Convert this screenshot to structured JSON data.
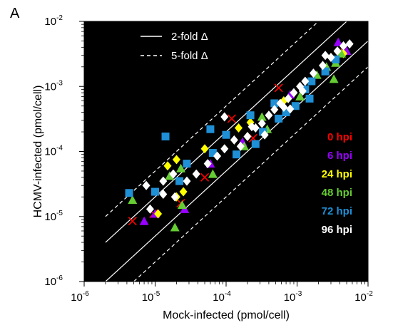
{
  "panel_label": "A",
  "chart_data": {
    "type": "scatter",
    "background": "#000000",
    "x_scale": "log",
    "y_scale": "log",
    "xlim": [
      1e-06,
      0.01
    ],
    "ylim": [
      1e-06,
      0.01
    ],
    "xlabel": "Mock-infected (pmol/cell)",
    "ylabel": "HCMV-infected (pmol/cell)",
    "x_ticks": [
      {
        "base": "10",
        "exp": "-6"
      },
      {
        "base": "10",
        "exp": "-5"
      },
      {
        "base": "10",
        "exp": "-4"
      },
      {
        "base": "10",
        "exp": "-3"
      },
      {
        "base": "10",
        "exp": "-2"
      }
    ],
    "y_ticks": [
      {
        "base": "10",
        "exp": "-6"
      },
      {
        "base": "10",
        "exp": "-5"
      },
      {
        "base": "10",
        "exp": "-4"
      },
      {
        "base": "10",
        "exp": "-3"
      },
      {
        "base": "10",
        "exp": "-2"
      }
    ],
    "reference_lines": [
      {
        "label": "2-fold Δ",
        "style": "solid",
        "factors": [
          2,
          0.5
        ]
      },
      {
        "label": "5-fold Δ",
        "style": "dashed",
        "factors": [
          5,
          0.2
        ]
      }
    ],
    "series": [
      {
        "name": "0 hpi",
        "color": "#ff0000",
        "marker": "cross",
        "points": [
          [
            4.8e-06,
            8.5e-06
          ],
          [
            9.5e-06,
            1.1e-05
          ],
          [
            2.3e-05,
            1.6e-05
          ],
          [
            5e-05,
            4e-05
          ],
          [
            0.00012,
            0.00032
          ],
          [
            0.00024,
            0.00016
          ],
          [
            0.0045,
            0.004
          ],
          [
            0.00055,
            0.00095
          ]
        ]
      },
      {
        "name": "6 hpi",
        "color": "#9900ff",
        "marker": "triangle",
        "points": [
          [
            7e-06,
            8.5e-06
          ],
          [
            1e-05,
            1.1e-05
          ],
          [
            2.6e-05,
            1.3e-05
          ],
          [
            6e-05,
            6.5e-05
          ],
          [
            0.00017,
            0.00014
          ],
          [
            0.005,
            0.0035
          ],
          [
            0.0038,
            0.0048
          ],
          [
            0.0008,
            0.00075
          ]
        ]
      },
      {
        "name": "24 hpi",
        "color": "#ffff00",
        "marker": "diamond",
        "points": [
          [
            1.1e-05,
            1.1e-05
          ],
          [
            2e-05,
            2e-05
          ],
          [
            2.5e-05,
            2.4e-05
          ],
          [
            1.5e-05,
            6e-05
          ],
          [
            2e-05,
            7.5e-05
          ],
          [
            5e-05,
            0.00011
          ],
          [
            0.00015,
            0.00023
          ],
          [
            0.00022,
            0.00028
          ],
          [
            0.0045,
            0.0032
          ],
          [
            0.00065,
            0.0006
          ]
        ]
      },
      {
        "name": "48 hpi",
        "color": "#66cc33",
        "marker": "triangle",
        "points": [
          [
            4.8e-06,
            1.8e-05
          ],
          [
            1.9e-05,
            6.8e-06
          ],
          [
            2.4e-05,
            1.5e-05
          ],
          [
            1.6e-05,
            4.2e-05
          ],
          [
            2.3e-05,
            5.5e-05
          ],
          [
            6.5e-05,
            4.5e-05
          ],
          [
            0.00018,
            0.00012
          ],
          [
            0.00038,
            0.00022
          ],
          [
            0.0011,
            0.0007
          ],
          [
            0.0026,
            0.002
          ],
          [
            0.0033,
            0.0013
          ],
          [
            0.0019,
            0.0015
          ],
          [
            0.0035,
            0.0023
          ],
          [
            0.0042,
            0.0032
          ],
          [
            0.00032,
            0.00034
          ]
        ]
      },
      {
        "name": "72 hpi",
        "color": "#1f8fd6",
        "marker": "square",
        "points": [
          [
            4.3e-06,
            2.3e-05
          ],
          [
            1.4e-05,
            0.00017
          ],
          [
            1e-05,
            2.4e-05
          ],
          [
            2.2e-05,
            3.5e-05
          ],
          [
            2.8e-05,
            6.5e-05
          ],
          [
            6.5e-05,
            9.5e-05
          ],
          [
            0.0001,
            0.00018
          ],
          [
            0.00014,
            9e-05
          ],
          [
            0.00026,
            0.00013
          ],
          [
            0.00033,
            0.0002
          ],
          [
            0.00055,
            0.00032
          ],
          [
            0.0007,
            0.0004
          ],
          [
            0.00095,
            0.0005
          ],
          [
            0.00048,
            0.00055
          ],
          [
            0.0013,
            0.0009
          ],
          [
            0.0016,
            0.0012
          ],
          [
            0.0025,
            0.0017
          ],
          [
            0.0035,
            0.0026
          ],
          [
            6e-05,
            0.00022
          ],
          [
            0.00022,
            0.00036
          ],
          [
            0.0015,
            0.00065
          ]
        ]
      },
      {
        "name": "96 hpi",
        "color": "#ffffff",
        "marker": "diamond",
        "points": [
          [
            1.3e-05,
            2.2e-05
          ],
          [
            8.5e-06,
            1.3e-05
          ],
          [
            1.3e-05,
            3.5e-05
          ],
          [
            1.9e-05,
            2e-05
          ],
          [
            2.8e-05,
            3.5e-05
          ],
          [
            3.8e-05,
            4.5e-05
          ],
          [
            5.5e-05,
            6.5e-05
          ],
          [
            7.5e-05,
            8.5e-05
          ],
          [
            9.5e-05,
            0.00011
          ],
          [
            0.00013,
            0.00015
          ],
          [
            0.00016,
            0.00012
          ],
          [
            0.0002,
            0.00017
          ],
          [
            0.00026,
            0.00023
          ],
          [
            0.00032,
            0.00027
          ],
          [
            0.0004,
            0.00036
          ],
          [
            0.00048,
            0.00044
          ],
          [
            0.00058,
            0.00055
          ],
          [
            0.00065,
            0.00048
          ],
          [
            0.00075,
            0.00065
          ],
          [
            0.0009,
            0.0008
          ],
          [
            0.0011,
            0.001
          ],
          [
            0.0013,
            0.0012
          ],
          [
            0.0017,
            0.0016
          ],
          [
            0.0023,
            0.0021
          ],
          [
            0.003,
            0.0028
          ],
          [
            0.0037,
            0.0035
          ],
          [
            0.0045,
            0.0042
          ],
          [
            0.0055,
            0.0045
          ],
          [
            7.5e-06,
            3e-05
          ],
          [
            9.5e-05,
            0.00034
          ],
          [
            1.8e-05,
            4.5e-05
          ],
          [
            0.00023,
            0.00024
          ],
          [
            0.00035,
            0.00018
          ],
          [
            0.0008,
            0.00045
          ],
          [
            0.0012,
            0.00085
          ],
          [
            0.0025,
            0.003
          ]
        ]
      }
    ]
  }
}
